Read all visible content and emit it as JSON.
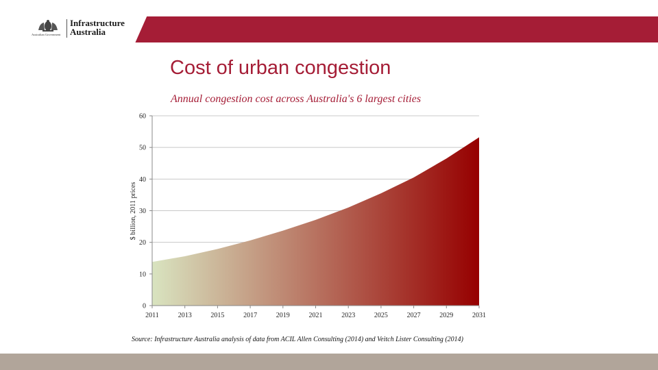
{
  "header": {
    "logo_name_line1": "Infrastructure",
    "logo_name_line2": "Australia",
    "logo_govt": "Australian Government"
  },
  "page_title": "Cost of urban congestion",
  "chart_data": {
    "type": "area",
    "title": "Annual congestion cost across Australia's 6 largest cities",
    "xlabel": "",
    "ylabel": "$ billion, 2011 prices",
    "x": [
      2011,
      2013,
      2015,
      2017,
      2019,
      2021,
      2023,
      2025,
      2027,
      2029,
      2031
    ],
    "series": [
      {
        "values": [
          13.8,
          15.6,
          17.9,
          20.6,
          23.7,
          27.1,
          31.0,
          35.5,
          40.5,
          46.5,
          53.2
        ]
      }
    ],
    "xticks": [
      "2011",
      "2013",
      "2015",
      "2017",
      "2019",
      "2021",
      "2023",
      "2025",
      "2027",
      "2029",
      "2031"
    ],
    "yticks": [
      "0",
      "10",
      "20",
      "30",
      "40",
      "50",
      "60"
    ],
    "xlim": [
      2011,
      2031
    ],
    "ylim": [
      0,
      60
    ],
    "grid": true,
    "fill_gradient": [
      "#d9e4c0",
      "#960000"
    ]
  },
  "source_note": "Source: Infrastructure Australia analysis of data from ACIL Allen Consulting (2014) and Veitch Lister Consulting (2014)",
  "colors": {
    "brand": "#a51d36",
    "footer": "#b1a59a"
  }
}
